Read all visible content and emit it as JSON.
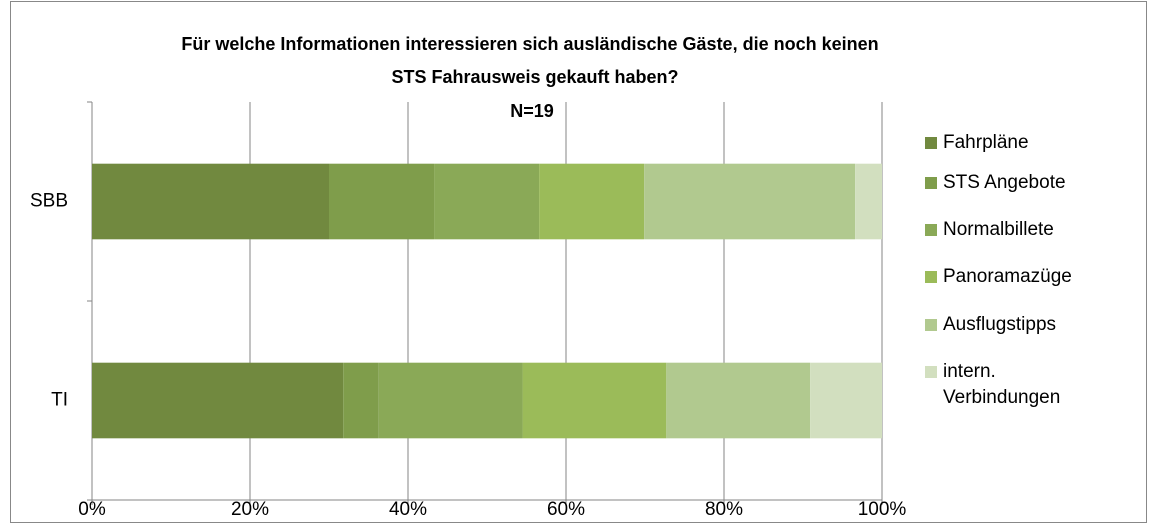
{
  "chart_data": {
    "type": "stacked_bar_horizontal",
    "title": [
      "Für welche Informationen interessieren sich ausländische Gäste, die noch keinen",
      "STS Fahrausweis gekauft haben?"
    ],
    "subtitle": "N=19",
    "categories": [
      "SBB",
      "TI"
    ],
    "series": [
      {
        "name": "Fahrpläne",
        "color": "#71893f",
        "values": [
          30,
          31.8
        ]
      },
      {
        "name": "STS Angebote",
        "color": "#7f9d4b",
        "values": [
          13.3,
          4.5
        ]
      },
      {
        "name": "Normalbillete",
        "color": "#8aa957",
        "values": [
          13.3,
          18.2
        ]
      },
      {
        "name": "Panoramazüge",
        "color": "#9bbb59",
        "values": [
          13.3,
          18.2
        ]
      },
      {
        "name": "Ausflugstipps",
        "color": "#b1c98f",
        "values": [
          26.7,
          18.2
        ]
      },
      {
        "name": "intern. Verbindungen",
        "color": "#d2dfbf",
        "values": [
          3.4,
          9.1
        ]
      }
    ],
    "xlim": [
      0,
      100
    ],
    "xticks": [
      {
        "value": 0,
        "label": "0%"
      },
      {
        "value": 20,
        "label": "20%"
      },
      {
        "value": 40,
        "label": "40%"
      },
      {
        "value": 60,
        "label": "60%"
      },
      {
        "value": 80,
        "label": "80%"
      },
      {
        "value": 100,
        "label": "100%"
      }
    ],
    "grid": true,
    "legend": "right"
  }
}
